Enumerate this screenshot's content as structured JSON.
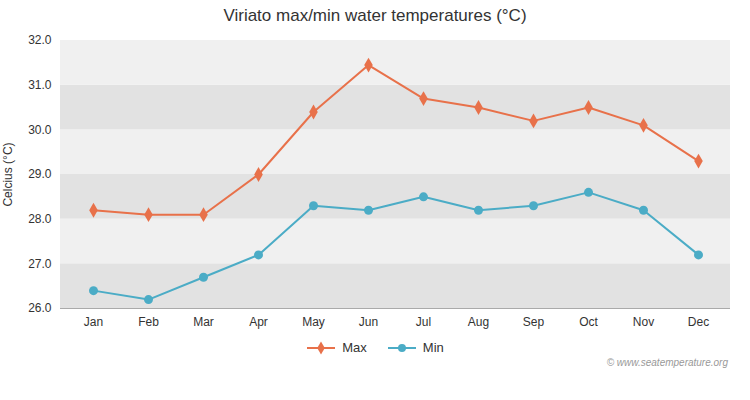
{
  "chart_data": {
    "type": "line",
    "title": "Viriato max/min water temperatures (°C)",
    "ylabel": "Celcius (°C)",
    "categories": [
      "Jan",
      "Feb",
      "Mar",
      "Apr",
      "May",
      "Jun",
      "Jul",
      "Aug",
      "Sep",
      "Oct",
      "Nov",
      "Dec"
    ],
    "series": [
      {
        "name": "Max",
        "color": "#e8714a",
        "marker": "diamond",
        "values": [
          28.2,
          28.1,
          28.1,
          29.0,
          30.4,
          31.45,
          30.7,
          30.5,
          30.2,
          30.5,
          30.1,
          29.3
        ]
      },
      {
        "name": "Min",
        "color": "#4bacc6",
        "marker": "circle",
        "values": [
          26.4,
          26.2,
          26.7,
          27.2,
          28.3,
          28.2,
          28.5,
          28.2,
          28.3,
          28.6,
          28.2,
          27.2
        ]
      }
    ],
    "ylim": [
      26.0,
      32.0
    ],
    "yticks": [
      26,
      27,
      28,
      29,
      30,
      31,
      32
    ],
    "grid": true,
    "legend": "bottom",
    "annotations": [
      "© www.seatemperature.org"
    ]
  }
}
